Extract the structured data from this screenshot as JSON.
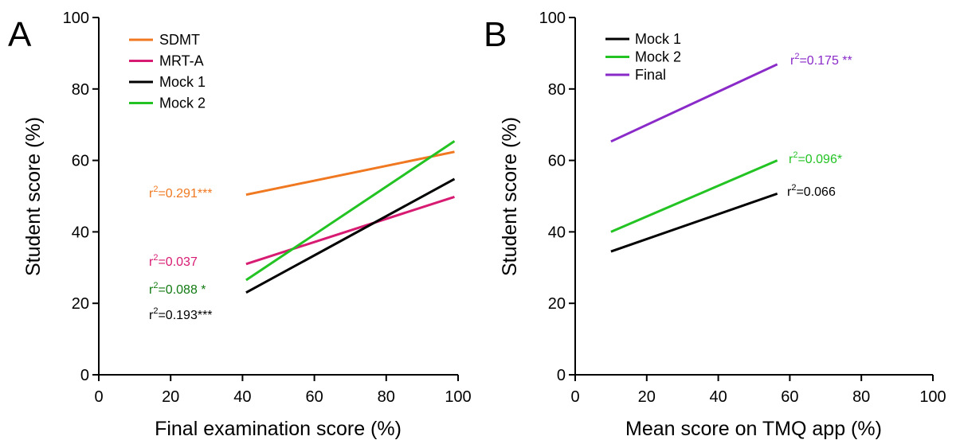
{
  "chart_data": [
    {
      "type": "line",
      "panel_label": "A",
      "xlabel": "Final examination score (%)",
      "ylabel": "Student score (%)",
      "xlim": [
        0,
        100
      ],
      "ylim": [
        0,
        100
      ],
      "xticks": [
        "0",
        "20",
        "40",
        "60",
        "80",
        "100"
      ],
      "yticks": [
        "0",
        "20",
        "40",
        "60",
        "80",
        "100"
      ],
      "grid": false,
      "legend_position": "top-left",
      "series": [
        {
          "name": "SDMT",
          "color": "#f07820",
          "x": [
            41,
            99
          ],
          "y": [
            50.4,
            62.4
          ],
          "annotation": {
            "r2": "0.291",
            "sig": "***"
          }
        },
        {
          "name": "MRT-A",
          "color": "#d81b72",
          "x": [
            41,
            99
          ],
          "y": [
            31,
            49.8
          ],
          "annotation": {
            "r2": "0.037",
            "sig": ""
          }
        },
        {
          "name": "Mock 1",
          "color": "#000000",
          "x": [
            41,
            99
          ],
          "y": [
            23,
            54.8
          ],
          "annotation": {
            "r2": "0.193",
            "sig": "***"
          }
        },
        {
          "name": "Mock 2",
          "color": "#22c322",
          "x": [
            41,
            99
          ],
          "y": [
            26.5,
            65.4
          ],
          "annotation": {
            "r2": "0.088",
            "sig": " *",
            "color": "#117a11"
          }
        }
      ]
    },
    {
      "type": "line",
      "panel_label": "B",
      "xlabel": "Mean score on TMQ app (%)",
      "ylabel": "Student score (%)",
      "xlim": [
        0,
        100
      ],
      "ylim": [
        0,
        100
      ],
      "xticks": [
        "0",
        "20",
        "40",
        "60",
        "80",
        "100"
      ],
      "yticks": [
        "0",
        "20",
        "40",
        "60",
        "80",
        "100"
      ],
      "grid": false,
      "legend_position": "top-left",
      "series": [
        {
          "name": "Mock 1",
          "color": "#000000",
          "x": [
            10,
            56.5
          ],
          "y": [
            34.5,
            50.7
          ],
          "annotation": {
            "r2": "0.066",
            "sig": ""
          }
        },
        {
          "name": "Mock 2",
          "color": "#22c322",
          "x": [
            10,
            56.5
          ],
          "y": [
            40,
            60
          ],
          "annotation": {
            "r2": "0.096",
            "sig": "*"
          }
        },
        {
          "name": "Final",
          "color": "#8a2ac8",
          "x": [
            10,
            56.5
          ],
          "y": [
            65.3,
            86.9
          ],
          "annotation": {
            "r2": "0.175",
            "sig": " **"
          }
        }
      ]
    }
  ]
}
